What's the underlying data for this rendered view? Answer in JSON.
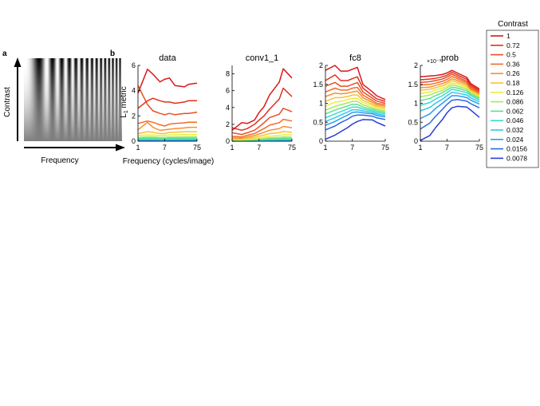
{
  "panel_a": {
    "label": "a",
    "ylabel": "Contrast",
    "xlabel": "Frequency"
  },
  "panel_b": {
    "label": "b",
    "xlabel": "Frequency (cycles/image)"
  },
  "legend": {
    "title": "Contrast",
    "entries": [
      "1",
      "0.72",
      "0.5",
      "0.36",
      "0.26",
      "0.18",
      "0.126",
      "0.086",
      "0.062",
      "0.046",
      "0.032",
      "0.024",
      "0.0156",
      "0.0078"
    ],
    "colors": [
      "#d7191c",
      "#e0301e",
      "#ea4e22",
      "#f26b27",
      "#f7902f",
      "#f7c13a",
      "#e9ee3d",
      "#a7e85f",
      "#5fe08a",
      "#3fdac9",
      "#33c7ef",
      "#2a9cef",
      "#2a69e6",
      "#2a3bd9"
    ]
  },
  "chart_data": [
    {
      "type": "line",
      "title": "data",
      "ylabel": "L1 metric",
      "x": [
        1,
        2,
        3,
        5,
        7,
        10,
        15,
        30,
        40,
        75
      ],
      "xticks": [
        "1",
        "7",
        "75"
      ],
      "ylim": [
        0,
        6
      ],
      "yticks": [
        "0",
        "2",
        "4",
        "6"
      ],
      "series": [
        {
          "values": [
            3.8,
            5.7,
            5.3,
            4.7,
            4.9,
            5.0,
            4.4,
            4.3,
            4.5,
            4.6
          ]
        },
        {
          "values": [
            2.6,
            3.2,
            3.4,
            3.2,
            3.1,
            3.1,
            3.0,
            3.1,
            3.2,
            3.2
          ]
        },
        {
          "values": [
            4.4,
            2.9,
            2.4,
            2.2,
            2.1,
            2.2,
            2.1,
            2.2,
            2.2,
            2.3
          ]
        },
        {
          "values": [
            1.4,
            1.6,
            1.5,
            1.3,
            1.2,
            1.35,
            1.4,
            1.45,
            1.5,
            1.5
          ]
        },
        {
          "values": [
            0.9,
            1.5,
            1.1,
            0.85,
            0.9,
            0.95,
            1.0,
            1.05,
            1.1,
            1.1
          ]
        },
        {
          "values": [
            0.6,
            0.75,
            0.7,
            0.6,
            0.6,
            0.7,
            0.7,
            0.75,
            0.75,
            0.75
          ]
        },
        {
          "values": [
            0.45,
            0.5,
            0.5,
            0.45,
            0.45,
            0.5,
            0.5,
            0.52,
            0.52,
            0.52
          ]
        },
        {
          "values": [
            0.3,
            0.35,
            0.35,
            0.3,
            0.3,
            0.33,
            0.33,
            0.35,
            0.35,
            0.35
          ]
        },
        {
          "values": [
            0.22,
            0.25,
            0.25,
            0.22,
            0.22,
            0.24,
            0.24,
            0.25,
            0.25,
            0.25
          ]
        },
        {
          "values": [
            0.16,
            0.18,
            0.18,
            0.16,
            0.16,
            0.17,
            0.17,
            0.18,
            0.18,
            0.18
          ]
        },
        {
          "values": [
            0.11,
            0.12,
            0.12,
            0.11,
            0.11,
            0.12,
            0.12,
            0.12,
            0.12,
            0.12
          ]
        },
        {
          "values": [
            0.08,
            0.09,
            0.09,
            0.08,
            0.08,
            0.09,
            0.09,
            0.09,
            0.09,
            0.09
          ]
        },
        {
          "values": [
            0.05,
            0.06,
            0.06,
            0.05,
            0.05,
            0.06,
            0.06,
            0.06,
            0.06,
            0.06
          ]
        },
        {
          "values": [
            0.03,
            0.03,
            0.03,
            0.03,
            0.03,
            0.03,
            0.03,
            0.03,
            0.03,
            0.03
          ]
        }
      ]
    },
    {
      "type": "line",
      "title": "conv1_1",
      "x": [
        1,
        2,
        3,
        5,
        7,
        10,
        15,
        30,
        40,
        75
      ],
      "xticks": [
        "1",
        "7",
        "75"
      ],
      "ylim": [
        0,
        9
      ],
      "yticks": [
        "0",
        "2",
        "4",
        "6",
        "8"
      ],
      "series": [
        {
          "values": [
            1.3,
            2.2,
            2.1,
            2.5,
            3.4,
            4.1,
            5.5,
            7.0,
            8.6,
            7.5
          ]
        },
        {
          "values": [
            1.6,
            1.3,
            1.5,
            2.0,
            2.5,
            3.0,
            3.8,
            5.0,
            6.3,
            5.3
          ]
        },
        {
          "values": [
            1.0,
            0.8,
            1.0,
            1.3,
            1.7,
            2.2,
            2.8,
            3.2,
            3.9,
            3.5
          ]
        },
        {
          "values": [
            0.6,
            0.5,
            0.7,
            0.9,
            1.2,
            1.5,
            1.9,
            2.2,
            2.6,
            2.4
          ]
        },
        {
          "values": [
            0.4,
            0.35,
            0.5,
            0.65,
            0.85,
            1.05,
            1.3,
            1.5,
            1.75,
            1.6
          ]
        },
        {
          "values": [
            0.28,
            0.25,
            0.35,
            0.45,
            0.6,
            0.72,
            0.9,
            1.0,
            1.15,
            1.05
          ]
        },
        {
          "values": [
            0.2,
            0.18,
            0.24,
            0.3,
            0.4,
            0.48,
            0.6,
            0.68,
            0.78,
            0.72
          ]
        },
        {
          "values": [
            0.14,
            0.12,
            0.16,
            0.2,
            0.27,
            0.32,
            0.4,
            0.45,
            0.52,
            0.48
          ]
        },
        {
          "values": [
            0.1,
            0.09,
            0.11,
            0.14,
            0.19,
            0.22,
            0.28,
            0.31,
            0.36,
            0.33
          ]
        },
        {
          "values": [
            0.07,
            0.06,
            0.08,
            0.1,
            0.13,
            0.15,
            0.19,
            0.21,
            0.24,
            0.22
          ]
        },
        {
          "values": [
            0.05,
            0.04,
            0.05,
            0.07,
            0.09,
            0.1,
            0.13,
            0.14,
            0.16,
            0.15
          ]
        },
        {
          "values": [
            0.03,
            0.03,
            0.04,
            0.05,
            0.06,
            0.07,
            0.09,
            0.1,
            0.11,
            0.1
          ]
        },
        {
          "values": [
            0.02,
            0.02,
            0.02,
            0.03,
            0.04,
            0.04,
            0.05,
            0.06,
            0.06,
            0.06
          ]
        },
        {
          "values": [
            0.01,
            0.01,
            0.01,
            0.01,
            0.02,
            0.02,
            0.02,
            0.03,
            0.03,
            0.03
          ]
        }
      ]
    },
    {
      "type": "line",
      "title": "fc8",
      "x": [
        1,
        2,
        3,
        5,
        7,
        10,
        15,
        30,
        40,
        75
      ],
      "xticks": [
        "1",
        "7",
        "75"
      ],
      "ylim": [
        0,
        2
      ],
      "yticks": [
        "0",
        "0.5",
        "1",
        "1.5",
        "2"
      ],
      "series": [
        {
          "values": [
            1.87,
            2.0,
            1.85,
            1.85,
            1.9,
            1.95,
            1.5,
            1.3,
            1.2,
            1.1
          ]
        },
        {
          "values": [
            1.6,
            1.75,
            1.6,
            1.6,
            1.65,
            1.7,
            1.4,
            1.2,
            1.12,
            1.05
          ]
        },
        {
          "values": [
            1.45,
            1.55,
            1.45,
            1.45,
            1.5,
            1.55,
            1.3,
            1.13,
            1.06,
            1.0
          ]
        },
        {
          "values": [
            1.3,
            1.4,
            1.35,
            1.35,
            1.4,
            1.42,
            1.22,
            1.07,
            1.0,
            0.96
          ]
        },
        {
          "values": [
            1.18,
            1.27,
            1.25,
            1.27,
            1.3,
            1.32,
            1.15,
            1.02,
            0.96,
            0.92
          ]
        },
        {
          "values": [
            1.05,
            1.15,
            1.15,
            1.18,
            1.22,
            1.22,
            1.08,
            0.97,
            0.92,
            0.88
          ]
        },
        {
          "values": [
            0.93,
            1.03,
            1.05,
            1.1,
            1.13,
            1.13,
            1.02,
            0.93,
            0.88,
            0.84
          ]
        },
        {
          "values": [
            0.82,
            0.92,
            0.96,
            1.01,
            1.05,
            1.05,
            0.96,
            0.88,
            0.84,
            0.8
          ]
        },
        {
          "values": [
            0.72,
            0.82,
            0.87,
            0.93,
            0.97,
            0.97,
            0.9,
            0.84,
            0.8,
            0.76
          ]
        },
        {
          "values": [
            0.62,
            0.72,
            0.78,
            0.85,
            0.9,
            0.9,
            0.85,
            0.8,
            0.76,
            0.72
          ]
        },
        {
          "values": [
            0.52,
            0.62,
            0.69,
            0.77,
            0.83,
            0.83,
            0.8,
            0.76,
            0.72,
            0.68
          ]
        },
        {
          "values": [
            0.42,
            0.52,
            0.6,
            0.69,
            0.76,
            0.77,
            0.75,
            0.72,
            0.68,
            0.64
          ]
        },
        {
          "values": [
            0.3,
            0.4,
            0.49,
            0.58,
            0.66,
            0.69,
            0.69,
            0.66,
            0.62,
            0.57
          ]
        },
        {
          "values": [
            0.05,
            0.16,
            0.25,
            0.36,
            0.45,
            0.52,
            0.57,
            0.56,
            0.5,
            0.4
          ]
        }
      ]
    },
    {
      "type": "line",
      "title": "prob",
      "y_exponent": "×10⁻³",
      "x": [
        1,
        2,
        3,
        5,
        7,
        10,
        15,
        30,
        40,
        75
      ],
      "xticks": [
        "1",
        "7",
        "75"
      ],
      "ylim": [
        0,
        2
      ],
      "yticks": [
        "0",
        "0.5",
        "1",
        "1.5",
        "2"
      ],
      "series": [
        {
          "values": [
            1.7,
            1.72,
            1.73,
            1.76,
            1.8,
            1.87,
            1.8,
            1.68,
            1.52,
            1.38
          ]
        },
        {
          "values": [
            1.62,
            1.64,
            1.66,
            1.7,
            1.74,
            1.82,
            1.75,
            1.63,
            1.48,
            1.34
          ]
        },
        {
          "values": [
            1.55,
            1.57,
            1.6,
            1.64,
            1.69,
            1.77,
            1.7,
            1.58,
            1.44,
            1.31
          ]
        },
        {
          "values": [
            1.48,
            1.5,
            1.53,
            1.58,
            1.63,
            1.71,
            1.65,
            1.54,
            1.4,
            1.28
          ]
        },
        {
          "values": [
            1.41,
            1.43,
            1.47,
            1.52,
            1.57,
            1.65,
            1.6,
            1.5,
            1.37,
            1.25
          ]
        },
        {
          "values": [
            1.34,
            1.37,
            1.41,
            1.46,
            1.52,
            1.6,
            1.55,
            1.46,
            1.34,
            1.22
          ]
        },
        {
          "values": [
            1.26,
            1.3,
            1.35,
            1.4,
            1.46,
            1.54,
            1.5,
            1.42,
            1.31,
            1.19
          ]
        },
        {
          "values": [
            1.17,
            1.22,
            1.28,
            1.34,
            1.41,
            1.49,
            1.45,
            1.38,
            1.28,
            1.16
          ]
        },
        {
          "values": [
            1.07,
            1.13,
            1.2,
            1.28,
            1.35,
            1.43,
            1.4,
            1.33,
            1.24,
            1.13
          ]
        },
        {
          "values": [
            0.95,
            1.02,
            1.11,
            1.2,
            1.28,
            1.37,
            1.34,
            1.28,
            1.2,
            1.09
          ]
        },
        {
          "values": [
            0.8,
            0.89,
            1.0,
            1.11,
            1.2,
            1.29,
            1.27,
            1.22,
            1.14,
            1.04
          ]
        },
        {
          "values": [
            0.6,
            0.72,
            0.86,
            1.0,
            1.1,
            1.2,
            1.2,
            1.15,
            1.08,
            0.98
          ]
        },
        {
          "values": [
            0.32,
            0.48,
            0.65,
            0.84,
            0.97,
            1.08,
            1.1,
            1.06,
            0.99,
            0.88
          ]
        },
        {
          "values": [
            0.02,
            0.15,
            0.35,
            0.57,
            0.75,
            0.88,
            0.92,
            0.9,
            0.82,
            0.63
          ]
        }
      ]
    }
  ]
}
